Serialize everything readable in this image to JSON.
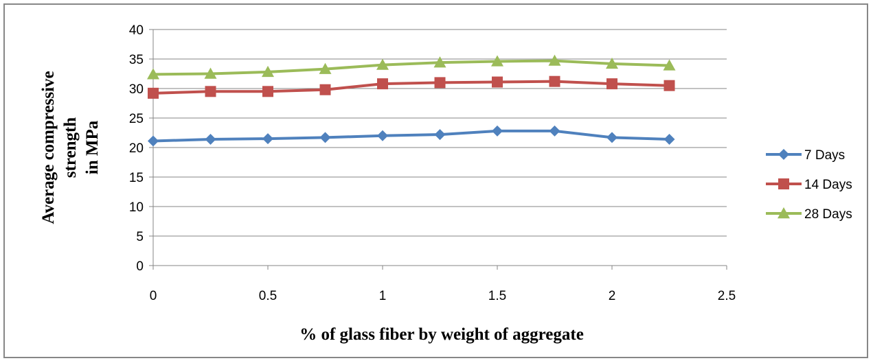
{
  "chart_data": {
    "type": "line",
    "xlabel": "% of glass fiber by weight of aggregate",
    "ylabel_lines": [
      "Average compressive",
      "strength",
      "in MPa"
    ],
    "xlim": [
      0,
      2.5
    ],
    "ylim": [
      0,
      40
    ],
    "x_ticks": [
      "0",
      "0.5",
      "1",
      "1.5",
      "2",
      "2.5"
    ],
    "y_ticks": [
      "0",
      "5",
      "10",
      "15",
      "20",
      "25",
      "30",
      "35",
      "40"
    ],
    "grid": "horizontal",
    "legend_position": "right",
    "x": [
      0,
      0.25,
      0.5,
      0.75,
      1,
      1.25,
      1.5,
      1.75,
      2,
      2.25
    ],
    "series": [
      {
        "name": "7 Days",
        "color": "#4F81BD",
        "marker": "diamond",
        "values": [
          21.1,
          21.4,
          21.5,
          21.7,
          22.0,
          22.2,
          22.8,
          22.8,
          21.7,
          21.4
        ]
      },
      {
        "name": "14 Days",
        "color": "#C0504D",
        "marker": "square",
        "values": [
          29.2,
          29.5,
          29.5,
          29.8,
          30.8,
          31.0,
          31.1,
          31.2,
          30.8,
          30.5
        ]
      },
      {
        "name": "28 Days",
        "color": "#9BBB59",
        "marker": "triangle",
        "values": [
          32.4,
          32.5,
          32.8,
          33.3,
          34.0,
          34.4,
          34.6,
          34.7,
          34.2,
          33.9
        ]
      }
    ]
  }
}
